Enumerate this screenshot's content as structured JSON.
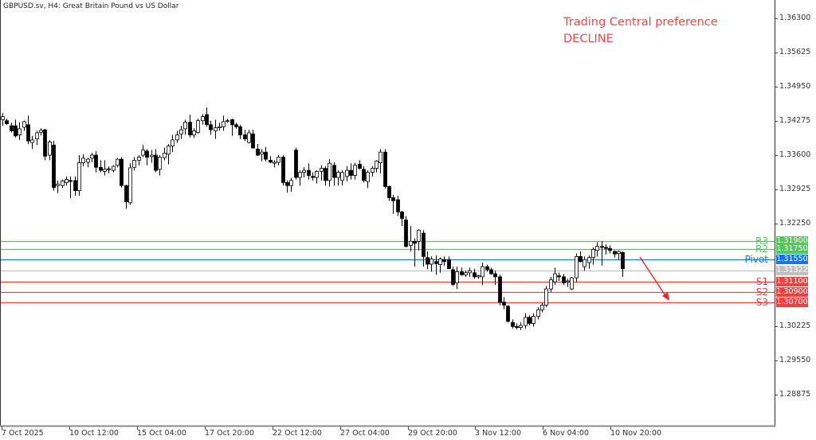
{
  "header": {
    "title": "GBPUSD.sv, H4:  Great Britain Pound vs US Dollar"
  },
  "preference": {
    "line1": "Trading Central preference",
    "line2": "DECLINE",
    "color": "#f0484a"
  },
  "colors": {
    "resistance": "#4fc95a",
    "pivot": "#1a73e8",
    "support": "#f04040",
    "current": "#c8c8c8",
    "arrow": "#e8262a"
  },
  "levels": [
    {
      "name": "R3",
      "price": "1.31900",
      "color": "#4fc95a"
    },
    {
      "name": "R2",
      "price": "1.31750",
      "color": "#4fc95a"
    },
    {
      "name": "Pivot",
      "price": "1.31550",
      "color": "#1a73e8"
    },
    {
      "name": "",
      "price": "1.31322",
      "color": "#c0c0c0"
    },
    {
      "name": "S1",
      "price": "1.31100",
      "color": "#f04040"
    },
    {
      "name": "S2",
      "price": "1.30900",
      "color": "#f04040"
    },
    {
      "name": "S3",
      "price": "1.30700",
      "color": "#f04040"
    }
  ],
  "chart_data": {
    "type": "candlestick",
    "title": "GBPUSD.sv, H4: Great Britain Pound vs US Dollar",
    "annotation": "Trading Central preference DECLINE",
    "y_ticks": [
      "1.36300",
      "1.35625",
      "1.34950",
      "1.34275",
      "1.33600",
      "1.32925",
      "1.32250",
      "1.30225",
      "1.29550",
      "1.28875"
    ],
    "x_ticks": [
      "7 Oct 2025",
      "10 Oct 12:00",
      "15 Oct 04:00",
      "17 Oct 20:00",
      "22 Oct 12:00",
      "27 Oct 04:00",
      "29 Oct 20:00",
      "3 Nov 12:00",
      "6 Nov 04:00",
      "10 Nov 20:00"
    ],
    "ylim": [
      1.282,
      1.366
    ],
    "levels": {
      "R3": 1.319,
      "R2": 1.3175,
      "Pivot": 1.3155,
      "Last": 1.31322,
      "S1": 1.311,
      "S2": 1.309,
      "S3": 1.307
    },
    "candles": [
      [
        1.343,
        1.3443,
        1.3418,
        1.3436
      ],
      [
        1.3428,
        1.3432,
        1.342,
        1.3422
      ],
      [
        1.3418,
        1.3424,
        1.3405,
        1.3408
      ],
      [
        1.3418,
        1.343,
        1.3395,
        1.3398
      ],
      [
        1.34,
        1.3425,
        1.339,
        1.3412
      ],
      [
        1.3415,
        1.3428,
        1.3408,
        1.3426
      ],
      [
        1.342,
        1.3438,
        1.3382,
        1.3388
      ],
      [
        1.3385,
        1.3398,
        1.3372,
        1.339
      ],
      [
        1.3392,
        1.3408,
        1.338,
        1.3404
      ],
      [
        1.3405,
        1.3413,
        1.3399,
        1.3409
      ],
      [
        1.341,
        1.3412,
        1.335,
        1.3358
      ],
      [
        1.336,
        1.339,
        1.335,
        1.3386
      ],
      [
        1.338,
        1.3388,
        1.329,
        1.3296
      ],
      [
        1.33,
        1.331,
        1.3285,
        1.3303
      ],
      [
        1.33,
        1.3312,
        1.3295,
        1.3309
      ],
      [
        1.3306,
        1.3318,
        1.33,
        1.3312
      ],
      [
        1.331,
        1.3318,
        1.3275,
        1.3308
      ],
      [
        1.331,
        1.3318,
        1.328,
        1.329
      ],
      [
        1.329,
        1.336,
        1.328,
        1.3345
      ],
      [
        1.3345,
        1.3362,
        1.3338,
        1.3354
      ],
      [
        1.3346,
        1.3355,
        1.3336,
        1.3352
      ],
      [
        1.3354,
        1.3365,
        1.3346,
        1.336
      ],
      [
        1.336,
        1.3368,
        1.3326,
        1.3336
      ],
      [
        1.3336,
        1.335,
        1.3326,
        1.333
      ],
      [
        1.3328,
        1.335,
        1.332,
        1.3332
      ],
      [
        1.3333,
        1.3338,
        1.3324,
        1.3332
      ],
      [
        1.333,
        1.334,
        1.3326,
        1.3338
      ],
      [
        1.334,
        1.3354,
        1.3336,
        1.3352
      ],
      [
        1.3352,
        1.3356,
        1.3296,
        1.33
      ],
      [
        1.33,
        1.3302,
        1.3254,
        1.3268
      ],
      [
        1.3266,
        1.3344,
        1.3262,
        1.3335
      ],
      [
        1.3336,
        1.3356,
        1.333,
        1.335
      ],
      [
        1.335,
        1.336,
        1.334,
        1.3356
      ],
      [
        1.336,
        1.338,
        1.3356,
        1.337
      ],
      [
        1.3368,
        1.3372,
        1.334,
        1.3356
      ],
      [
        1.3357,
        1.337,
        1.3345,
        1.336
      ],
      [
        1.336,
        1.3372,
        1.3326,
        1.333
      ],
      [
        1.3332,
        1.336,
        1.332,
        1.3356
      ],
      [
        1.3355,
        1.3375,
        1.335,
        1.3364
      ],
      [
        1.3362,
        1.3382,
        1.3342,
        1.3378
      ],
      [
        1.3378,
        1.34,
        1.3366,
        1.339
      ],
      [
        1.339,
        1.3408,
        1.3384,
        1.34
      ],
      [
        1.3402,
        1.3418,
        1.3392,
        1.341
      ],
      [
        1.3412,
        1.343,
        1.34,
        1.3425
      ],
      [
        1.3425,
        1.344,
        1.3395,
        1.34
      ],
      [
        1.34,
        1.3413,
        1.3394,
        1.3408
      ],
      [
        1.3405,
        1.3432,
        1.3402,
        1.3428
      ],
      [
        1.3428,
        1.3441,
        1.342,
        1.3436
      ],
      [
        1.344,
        1.3454,
        1.3416,
        1.342
      ],
      [
        1.342,
        1.3428,
        1.34,
        1.341
      ],
      [
        1.3408,
        1.343,
        1.3392,
        1.3414
      ],
      [
        1.3414,
        1.3424,
        1.3408,
        1.3416
      ],
      [
        1.3416,
        1.3438,
        1.3408,
        1.3426
      ],
      [
        1.3428,
        1.3432,
        1.3424,
        1.3428
      ],
      [
        1.343,
        1.3432,
        1.3398,
        1.342
      ],
      [
        1.342,
        1.3424,
        1.3412,
        1.3416
      ],
      [
        1.3416,
        1.342,
        1.3392,
        1.34
      ],
      [
        1.34,
        1.341,
        1.3388,
        1.3392
      ],
      [
        1.3385,
        1.341,
        1.3383,
        1.3404
      ],
      [
        1.3402,
        1.341,
        1.3374,
        1.3374
      ],
      [
        1.3372,
        1.3382,
        1.3358,
        1.336
      ],
      [
        1.3362,
        1.3372,
        1.3348,
        1.3366
      ],
      [
        1.3366,
        1.3376,
        1.3348,
        1.3352
      ],
      [
        1.335,
        1.3358,
        1.3344,
        1.3346
      ],
      [
        1.3344,
        1.335,
        1.3336,
        1.3346
      ],
      [
        1.3346,
        1.336,
        1.334,
        1.3356
      ],
      [
        1.3356,
        1.336,
        1.33,
        1.3306
      ],
      [
        1.3306,
        1.331,
        1.3286,
        1.33
      ],
      [
        1.33,
        1.3315,
        1.3288,
        1.331
      ],
      [
        1.337,
        1.3375,
        1.3312,
        1.3316
      ],
      [
        1.3316,
        1.333,
        1.33,
        1.3326
      ],
      [
        1.3326,
        1.3336,
        1.3316,
        1.333
      ],
      [
        1.333,
        1.3344,
        1.3312,
        1.332
      ],
      [
        1.3318,
        1.3326,
        1.331,
        1.3316
      ],
      [
        1.3316,
        1.333,
        1.3304,
        1.3328
      ],
      [
        1.3328,
        1.334,
        1.331,
        1.3334
      ],
      [
        1.3334,
        1.3338,
        1.33,
        1.331
      ],
      [
        1.331,
        1.3352,
        1.3298,
        1.3344
      ],
      [
        1.334,
        1.3346,
        1.33,
        1.3316
      ],
      [
        1.3316,
        1.333,
        1.33,
        1.3326
      ],
      [
        1.331,
        1.333,
        1.33,
        1.3326
      ],
      [
        1.3318,
        1.3338,
        1.3308,
        1.333
      ],
      [
        1.333,
        1.3344,
        1.3312,
        1.332
      ],
      [
        1.332,
        1.3345,
        1.3312,
        1.334
      ],
      [
        1.3342,
        1.335,
        1.3332,
        1.3334
      ],
      [
        1.3332,
        1.3338,
        1.3306,
        1.331
      ],
      [
        1.3308,
        1.333,
        1.3295,
        1.3326
      ],
      [
        1.3326,
        1.3338,
        1.3318,
        1.3334
      ],
      [
        1.3334,
        1.335,
        1.3326,
        1.3348
      ],
      [
        1.3345,
        1.3372,
        1.3324,
        1.3366
      ],
      [
        1.3366,
        1.3372,
        1.3294,
        1.3298
      ],
      [
        1.3298,
        1.33,
        1.327,
        1.3276
      ],
      [
        1.3276,
        1.3282,
        1.3244,
        1.327
      ],
      [
        1.3272,
        1.328,
        1.324,
        1.3248
      ],
      [
        1.3248,
        1.325,
        1.322,
        1.3235
      ],
      [
        1.3232,
        1.324,
        1.3178,
        1.318
      ],
      [
        1.3182,
        1.322,
        1.317,
        1.319
      ],
      [
        1.319,
        1.3196,
        1.314,
        1.3186
      ],
      [
        1.319,
        1.3214,
        1.3172,
        1.3212
      ],
      [
        1.3206,
        1.3212,
        1.314,
        1.316
      ],
      [
        1.3158,
        1.317,
        1.3135,
        1.3145
      ],
      [
        1.3145,
        1.316,
        1.313,
        1.3155
      ],
      [
        1.315,
        1.3162,
        1.3124,
        1.3146
      ],
      [
        1.3144,
        1.3158,
        1.3128,
        1.3155
      ],
      [
        1.3154,
        1.316,
        1.3142,
        1.315
      ],
      [
        1.3154,
        1.316,
        1.3136,
        1.3136
      ],
      [
        1.3134,
        1.314,
        1.3102,
        1.3105
      ],
      [
        1.3108,
        1.314,
        1.3096,
        1.313
      ],
      [
        1.313,
        1.3138,
        1.3122,
        1.3124
      ],
      [
        1.3124,
        1.3132,
        1.312,
        1.3128
      ],
      [
        1.3128,
        1.3138,
        1.312,
        1.3132
      ],
      [
        1.3128,
        1.3136,
        1.3116,
        1.312
      ],
      [
        1.312,
        1.3124,
        1.3116,
        1.3122
      ],
      [
        1.312,
        1.3148,
        1.3104,
        1.314
      ],
      [
        1.314,
        1.3144,
        1.313,
        1.3134
      ],
      [
        1.3134,
        1.3138,
        1.3124,
        1.3126
      ],
      [
        1.3126,
        1.3132,
        1.3104,
        1.312
      ],
      [
        1.312,
        1.3124,
        1.3064,
        1.307
      ],
      [
        1.307,
        1.308,
        1.3056,
        1.3064
      ],
      [
        1.3062,
        1.3064,
        1.303,
        1.3032
      ],
      [
        1.303,
        1.3036,
        1.3018,
        1.3022
      ],
      [
        1.3022,
        1.3028,
        1.3016,
        1.302
      ],
      [
        1.302,
        1.303,
        1.3015,
        1.3024
      ],
      [
        1.3024,
        1.3048,
        1.3018,
        1.304
      ],
      [
        1.304,
        1.3044,
        1.3024,
        1.3028
      ],
      [
        1.3028,
        1.3048,
        1.3022,
        1.3042
      ],
      [
        1.3042,
        1.306,
        1.3036,
        1.3055
      ],
      [
        1.3055,
        1.3068,
        1.305,
        1.3064
      ],
      [
        1.3064,
        1.3102,
        1.306,
        1.3096
      ],
      [
        1.3096,
        1.312,
        1.309,
        1.3114
      ],
      [
        1.311,
        1.3138,
        1.3104,
        1.3126
      ],
      [
        1.3122,
        1.3128,
        1.3112,
        1.312
      ],
      [
        1.312,
        1.3126,
        1.3104,
        1.3108
      ],
      [
        1.311,
        1.3116,
        1.31,
        1.3112
      ],
      [
        1.3096,
        1.312,
        1.3094,
        1.3118
      ],
      [
        1.3118,
        1.3166,
        1.311,
        1.316
      ],
      [
        1.316,
        1.317,
        1.3148,
        1.315
      ],
      [
        1.314,
        1.316,
        1.3132,
        1.3154
      ],
      [
        1.3148,
        1.3162,
        1.3136,
        1.3158
      ],
      [
        1.3158,
        1.3178,
        1.3144,
        1.3174
      ],
      [
        1.3172,
        1.3188,
        1.316,
        1.318
      ],
      [
        1.318,
        1.319,
        1.3142,
        1.3178
      ],
      [
        1.3178,
        1.3184,
        1.3164,
        1.3176
      ],
      [
        1.3176,
        1.3182,
        1.3166,
        1.3172
      ],
      [
        1.317,
        1.3172,
        1.3158,
        1.3165
      ],
      [
        1.3166,
        1.3172,
        1.3154,
        1.317
      ],
      [
        1.3168,
        1.317,
        1.312,
        1.3136
      ]
    ]
  }
}
